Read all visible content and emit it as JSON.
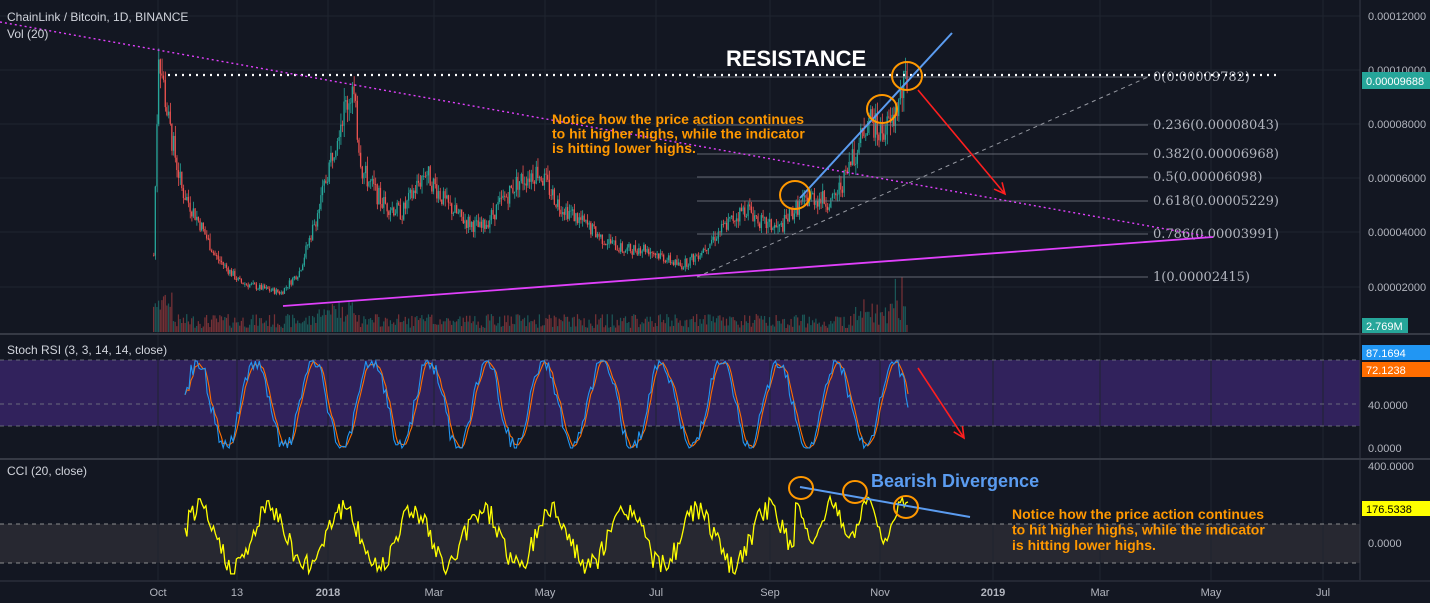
{
  "main_pane": {
    "symbol_label": "ChainLink / Bitcoin, 1D, BINANCE",
    "volume_label": "Vol (20)"
  },
  "stoch_pane": {
    "label": "Stoch RSI (3, 3, 14, 14, close)"
  },
  "cci_pane": {
    "label": "CCI (20, close)"
  },
  "annotations": {
    "resistance": "RESISTANCE",
    "note_main": [
      "Notice how the price action continues",
      "to hit higher highs, while the indicator",
      "is hitting lower highs."
    ],
    "note_cci": [
      "Notice how the price action continues",
      "to hit higher highs, while the indicator",
      "is hitting lower highs."
    ],
    "divergence": "Bearish Divergence"
  },
  "colors": {
    "background": "#131722",
    "up_candle": "#26a69a",
    "down_candle": "#ef5350",
    "trendline": "#e040fb",
    "blue_line": "#5b9cf0",
    "orange_highlight": "#ff9800",
    "red_arrow": "#ff1f1f",
    "cci_line": "#ffff00",
    "stoch_k": "#2196f3",
    "stoch_d": "#ff6d00",
    "stoch_band": "#4a2b8c"
  },
  "chart_data": [
    {
      "type": "candlestick",
      "pane": "price",
      "ylim": [
        0.0,
        0.00012
      ],
      "y_ticks": [
        "0.00012000",
        "0.00010000",
        "0.00008000",
        "0.00006000",
        "0.00004000",
        "0.00002000"
      ],
      "x_ticks": [
        "Oct",
        "13",
        "2018",
        "Mar",
        "May",
        "Jul",
        "Sep",
        "Nov",
        "2019",
        "Mar",
        "May",
        "Jul"
      ],
      "last_price": "0.00009688",
      "volume_last": "2.769M",
      "approx_close_path": [
        {
          "x": "Sep 2017",
          "y": 3e-05
        },
        {
          "x": "Oct 2017",
          "y": 0.00011
        },
        {
          "x": "Nov 2017",
          "y": 3.5e-05
        },
        {
          "x": "Dec 2017",
          "y": 1.6e-05
        },
        {
          "x": "Jan 2018",
          "y": 9.3e-05
        },
        {
          "x": "Feb 2018",
          "y": 5e-05
        },
        {
          "x": "Mar 2018",
          "y": 6.5e-05
        },
        {
          "x": "Apr 2018",
          "y": 4e-05
        },
        {
          "x": "May 2018",
          "y": 6.3e-05
        },
        {
          "x": "Jun 2018",
          "y": 3.5e-05
        },
        {
          "x": "Jul 2018",
          "y": 2.5e-05
        },
        {
          "x": "Aug 2018",
          "y": 4.5e-05
        },
        {
          "x": "Sep 2018",
          "y": 4.5e-05
        },
        {
          "x": "Oct 2018",
          "y": 5.5e-05
        },
        {
          "x": "Nov 2018",
          "y": 9.7e-05
        }
      ],
      "fib_levels": [
        {
          "label": "0(0.00009782)",
          "value": 9.782e-05
        },
        {
          "label": "0.236(0.00008043)",
          "value": 8.043e-05
        },
        {
          "label": "0.382(0.00006968)",
          "value": 6.968e-05
        },
        {
          "label": "0.5(0.00006098)",
          "value": 6.098e-05
        },
        {
          "label": "0.618(0.00005229)",
          "value": 5.229e-05
        },
        {
          "label": "0.786(0.00003991)",
          "value": 3.991e-05
        },
        {
          "label": "1(0.00002415)",
          "value": 2.415e-05
        }
      ]
    },
    {
      "type": "line",
      "pane": "stoch_rsi",
      "y_ticks": [
        "40.0000",
        "0.0000"
      ],
      "series": [
        {
          "name": "K",
          "last": "87.1694"
        },
        {
          "name": "D",
          "last": "72.1238"
        }
      ]
    },
    {
      "type": "line",
      "pane": "cci",
      "y_ticks": [
        "400.0000",
        "0.0000"
      ],
      "series": [
        {
          "name": "CCI",
          "last": "176.5338"
        }
      ]
    }
  ]
}
